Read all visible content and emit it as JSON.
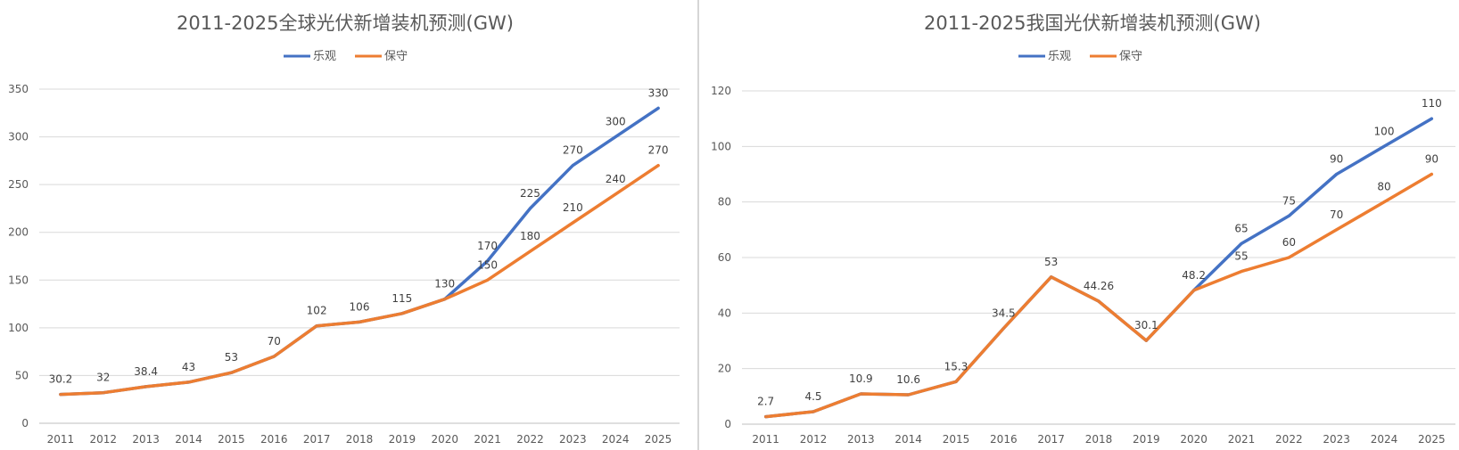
{
  "chart_data": [
    {
      "type": "line",
      "title": "2011-2025全球光伏新增装机预测(GW)",
      "categories": [
        "2011",
        "2012",
        "2013",
        "2014",
        "2015",
        "2016",
        "2017",
        "2018",
        "2019",
        "2020",
        "2021",
        "2022",
        "2023",
        "2024",
        "2025"
      ],
      "ylim": [
        0,
        350
      ],
      "yticks": [
        0,
        50,
        100,
        150,
        200,
        250,
        300,
        350
      ],
      "legend_position": "top-center",
      "grid": true,
      "series": [
        {
          "name": "乐观",
          "color": "#4472C4",
          "values": [
            30.2,
            32,
            38.4,
            43,
            53,
            70,
            102,
            106,
            115,
            130,
            170,
            225,
            270,
            300,
            330
          ],
          "labeled": [
            false,
            false,
            false,
            false,
            false,
            false,
            false,
            false,
            false,
            false,
            true,
            true,
            true,
            true,
            true
          ]
        },
        {
          "name": "保守",
          "color": "#ED7D31",
          "values": [
            30.2,
            32,
            38.4,
            43,
            53,
            70,
            102,
            106,
            115,
            130,
            150,
            180,
            210,
            240,
            270
          ],
          "labeled": [
            true,
            true,
            true,
            true,
            true,
            true,
            true,
            true,
            true,
            true,
            true,
            true,
            true,
            true,
            true
          ]
        }
      ]
    },
    {
      "type": "line",
      "title": "2011-2025我国光伏新增装机预测(GW)",
      "categories": [
        "2011",
        "2012",
        "2013",
        "2014",
        "2015",
        "2016",
        "2017",
        "2018",
        "2019",
        "2020",
        "2021",
        "2022",
        "2023",
        "2024",
        "2025"
      ],
      "ylim": [
        0,
        120
      ],
      "yticks": [
        0,
        20,
        40,
        60,
        80,
        100,
        120
      ],
      "legend_position": "top-center",
      "grid": true,
      "series": [
        {
          "name": "乐观",
          "color": "#4472C4",
          "values": [
            2.7,
            4.5,
            10.9,
            10.6,
            15.3,
            34.5,
            53,
            44.26,
            30.1,
            48.2,
            65,
            75,
            90,
            100,
            110
          ],
          "labeled": [
            false,
            false,
            false,
            false,
            false,
            false,
            false,
            false,
            false,
            false,
            true,
            true,
            true,
            true,
            true
          ]
        },
        {
          "name": "保守",
          "color": "#ED7D31",
          "values": [
            2.7,
            4.5,
            10.9,
            10.6,
            15.3,
            34.5,
            53,
            44.26,
            30.1,
            48.2,
            55,
            60,
            70,
            80,
            90
          ],
          "labeled": [
            true,
            true,
            true,
            true,
            true,
            true,
            true,
            true,
            true,
            true,
            true,
            true,
            true,
            true,
            true
          ]
        }
      ]
    }
  ]
}
